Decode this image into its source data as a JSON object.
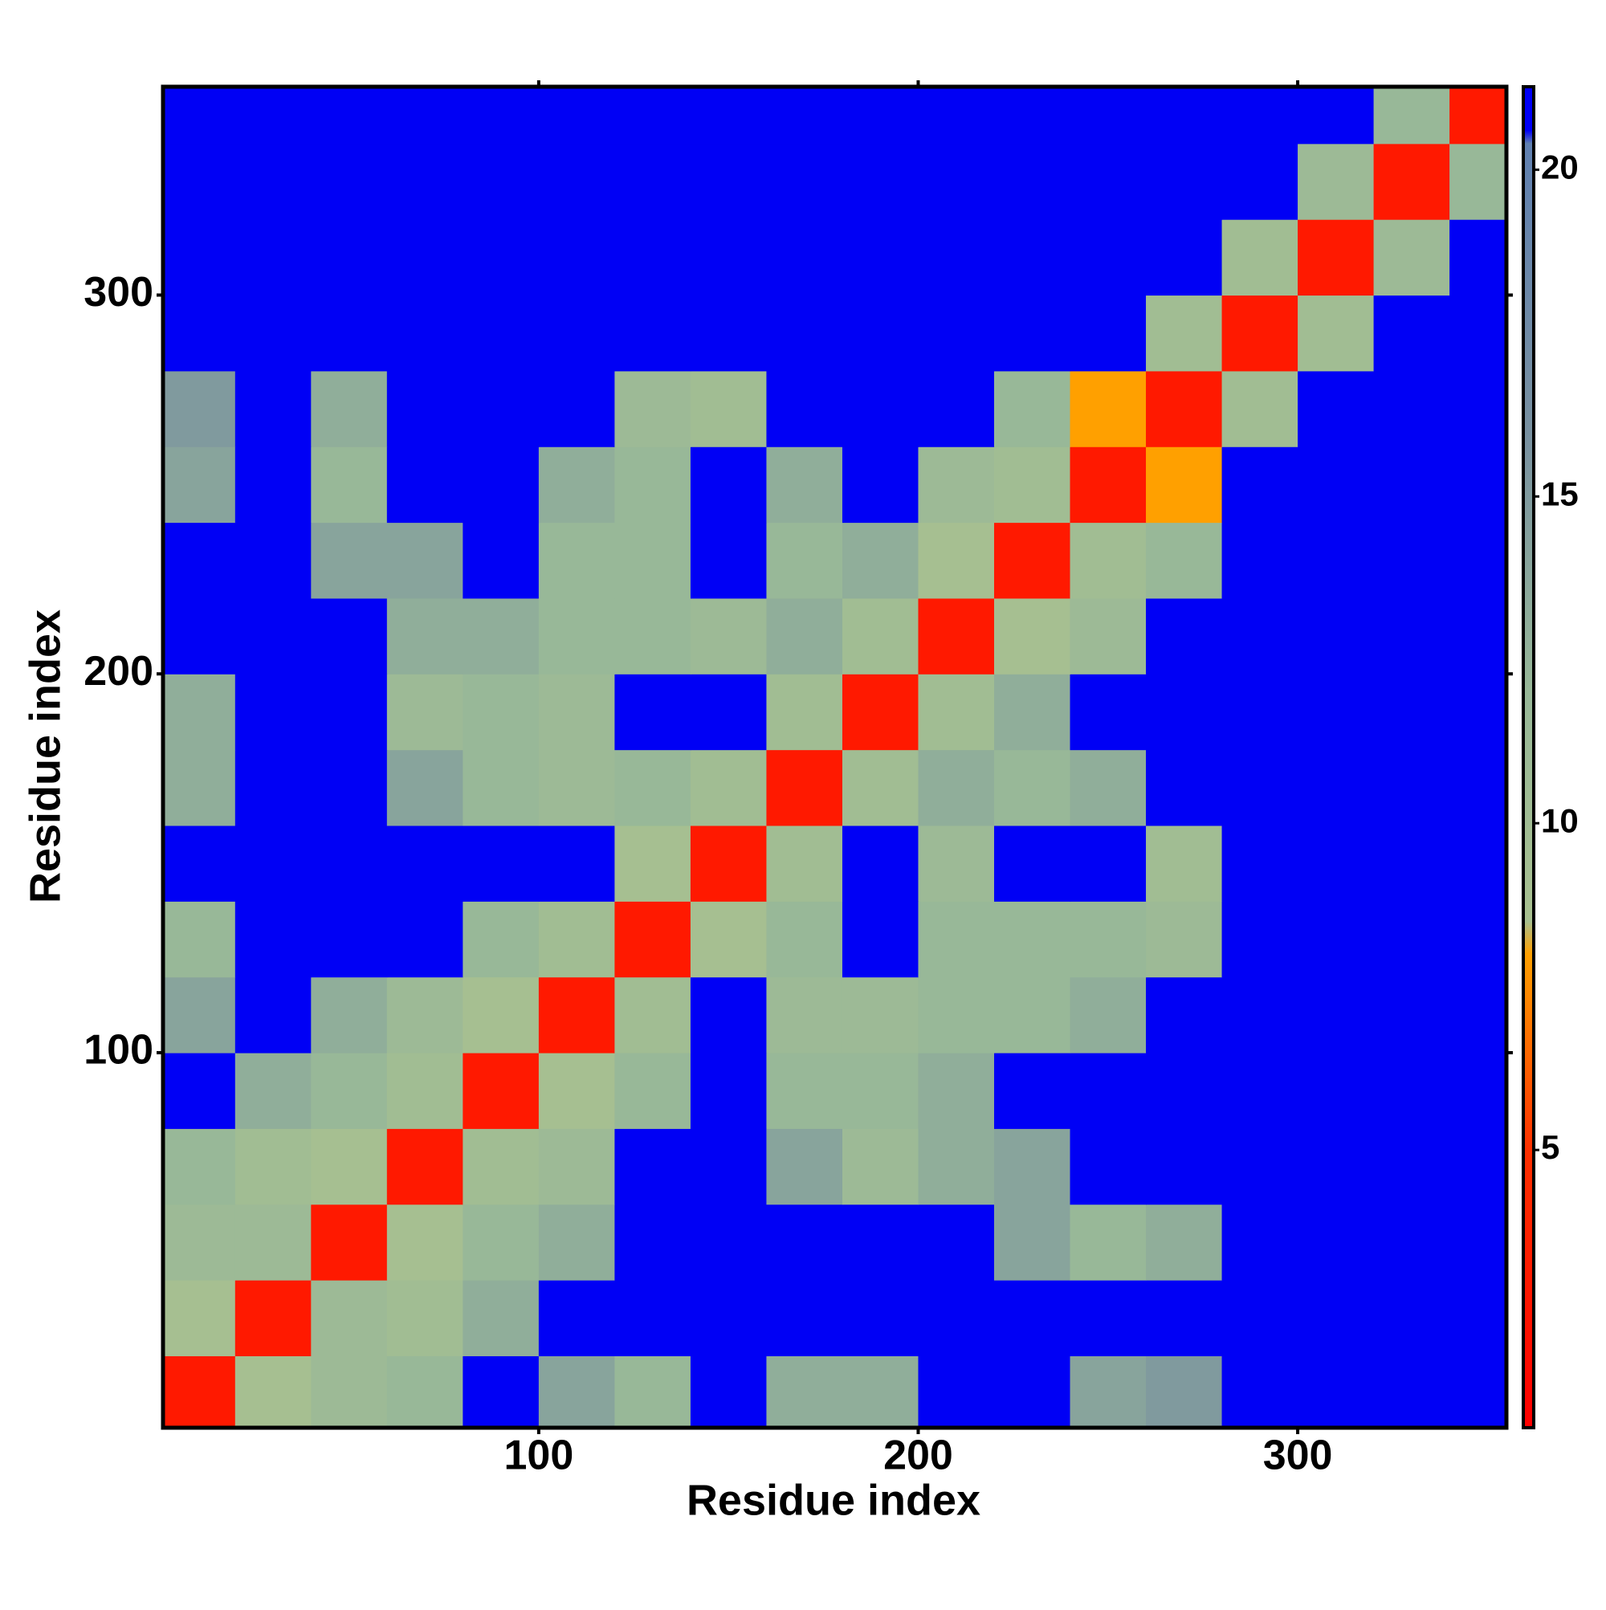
{
  "chart_data": {
    "type": "heatmap",
    "xlabel": "Residue index",
    "ylabel": "Residue index",
    "bins": [
      1,
      20,
      40,
      60,
      80,
      100,
      120,
      140,
      160,
      180,
      200,
      220,
      240,
      260,
      280,
      300,
      320,
      340,
      355
    ],
    "values": [
      [
        3,
        9,
        11,
        12,
        21,
        14,
        12,
        21,
        13,
        13,
        21,
        21,
        14,
        15,
        21,
        21,
        21,
        21
      ],
      [
        9,
        3,
        11,
        10,
        13,
        21,
        21,
        21,
        21,
        21,
        21,
        21,
        21,
        21,
        21,
        21,
        21,
        21
      ],
      [
        11,
        11,
        3,
        9,
        12,
        13,
        21,
        21,
        21,
        21,
        21,
        14,
        12,
        13,
        21,
        21,
        21,
        21
      ],
      [
        12,
        10,
        9,
        3,
        10,
        11,
        21,
        21,
        14,
        11,
        13,
        14,
        21,
        21,
        21,
        21,
        21,
        21
      ],
      [
        21,
        13,
        12,
        10,
        3,
        9,
        12,
        21,
        12,
        12,
        13,
        21,
        21,
        21,
        21,
        21,
        21,
        21
      ],
      [
        14,
        21,
        13,
        11,
        9,
        3,
        10,
        21,
        11,
        11,
        12,
        12,
        13,
        21,
        21,
        21,
        21,
        21
      ],
      [
        12,
        21,
        21,
        21,
        12,
        10,
        3,
        9,
        12,
        21,
        12,
        12,
        12,
        11,
        21,
        21,
        21,
        21
      ],
      [
        21,
        21,
        21,
        21,
        21,
        21,
        9,
        3,
        10,
        21,
        11,
        21,
        21,
        10,
        21,
        21,
        21,
        21
      ],
      [
        13,
        21,
        21,
        14,
        12,
        11,
        12,
        10,
        3,
        10,
        13,
        12,
        13,
        21,
        21,
        21,
        21,
        21
      ],
      [
        13,
        21,
        21,
        11,
        12,
        11,
        21,
        21,
        10,
        3,
        10,
        13,
        21,
        21,
        21,
        21,
        21,
        21
      ],
      [
        21,
        21,
        21,
        13,
        13,
        12,
        12,
        11,
        13,
        10,
        3,
        9,
        11,
        21,
        21,
        21,
        21,
        21
      ],
      [
        21,
        21,
        14,
        14,
        21,
        12,
        12,
        21,
        12,
        13,
        9,
        3,
        10,
        12,
        21,
        21,
        21,
        21
      ],
      [
        14,
        21,
        12,
        21,
        21,
        13,
        12,
        21,
        13,
        21,
        11,
        10,
        3,
        8,
        21,
        21,
        21,
        21
      ],
      [
        15,
        21,
        13,
        21,
        21,
        21,
        11,
        10,
        21,
        21,
        21,
        12,
        8,
        3,
        10,
        21,
        21,
        21
      ],
      [
        21,
        21,
        21,
        21,
        21,
        21,
        21,
        21,
        21,
        21,
        21,
        21,
        21,
        10,
        3,
        10,
        21,
        21
      ],
      [
        21,
        21,
        21,
        21,
        21,
        21,
        21,
        21,
        21,
        21,
        21,
        21,
        21,
        21,
        10,
        3,
        11,
        21
      ],
      [
        21,
        21,
        21,
        21,
        21,
        21,
        21,
        21,
        21,
        21,
        21,
        21,
        21,
        21,
        21,
        11,
        3,
        12
      ],
      [
        21,
        21,
        21,
        21,
        21,
        21,
        21,
        21,
        21,
        21,
        21,
        21,
        21,
        21,
        21,
        21,
        12,
        3
      ]
    ],
    "xlim": [
      1,
      355
    ],
    "ylim": [
      1,
      355
    ],
    "xticks": [
      100,
      200,
      300
    ],
    "yticks": [
      100,
      200,
      300
    ],
    "zlim": [
      0.75,
      21.27
    ],
    "zticks": [
      5,
      10,
      15,
      20
    ],
    "colorscale": [
      {
        "value": 0.75,
        "color": "#ff0000"
      },
      {
        "value": 5,
        "color": "#ff3000"
      },
      {
        "value": 8,
        "color": "#ffa000"
      },
      {
        "value": 8.5,
        "color": "#a8c090"
      },
      {
        "value": 12,
        "color": "#98b898"
      },
      {
        "value": 16,
        "color": "#7890a0"
      },
      {
        "value": 20.4,
        "color": "#6080b0"
      },
      {
        "value": 20.6,
        "color": "#0000f5"
      },
      {
        "value": 21.27,
        "color": "#0000f5"
      }
    ]
  }
}
